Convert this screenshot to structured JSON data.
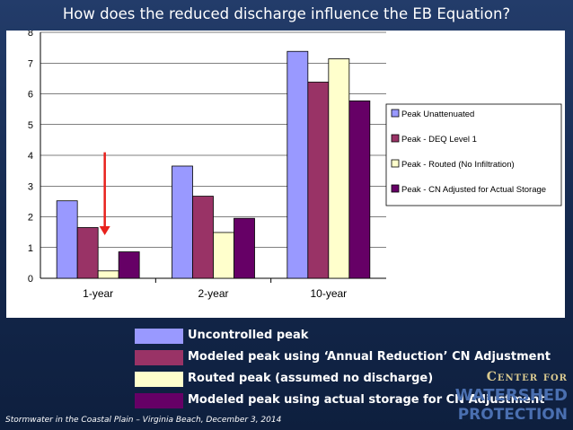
{
  "title": "How does the reduced discharge influence the EB Equation?",
  "chart_data": {
    "type": "bar",
    "categories": [
      "1-year",
      "2-year",
      "10-year"
    ],
    "ylim": [
      0,
      8
    ],
    "yticks": [
      "0",
      "1",
      "2",
      "3",
      "4",
      "5",
      "6",
      "7",
      "8"
    ],
    "grid": true,
    "legend_placement": "right",
    "series": [
      {
        "name": "Peak Unattenuated",
        "color": "#9999ff",
        "values": [
          2.52,
          3.65,
          7.38
        ]
      },
      {
        "name": "Peak - DEQ Level 1",
        "color": "#993366",
        "values": [
          1.65,
          2.67,
          6.38
        ]
      },
      {
        "name": "Peak  - Routed (No Infiltration)",
        "color": "#ffffcc",
        "values": [
          0.24,
          1.49,
          7.14
        ]
      },
      {
        "name": "Peak - CN Adjusted for Actual Storage",
        "color": "#660066",
        "values": [
          0.86,
          1.95,
          5.77
        ]
      }
    ],
    "annotation": {
      "type": "down-arrow",
      "color": "#e8211c",
      "from": 4.1,
      "to": 1.4
    }
  },
  "legend_bottom": [
    {
      "label": "Uncontrolled peak",
      "color": "#9999ff"
    },
    {
      "label": "Modeled peak using ‘Annual Reduction’ CN Adjustment",
      "color": "#993366"
    },
    {
      "label": "Routed peak (assumed no discharge)",
      "color": "#ffffcc"
    },
    {
      "label": "Modeled peak using actual storage for CN Adjustment",
      "color": "#660066"
    }
  ],
  "footer": "Stormwater in the Coastal Plain – Virginia Beach, December 3, 2014",
  "logo": {
    "line1": "Center for",
    "line2": "Watershed",
    "line3": "Protection"
  }
}
